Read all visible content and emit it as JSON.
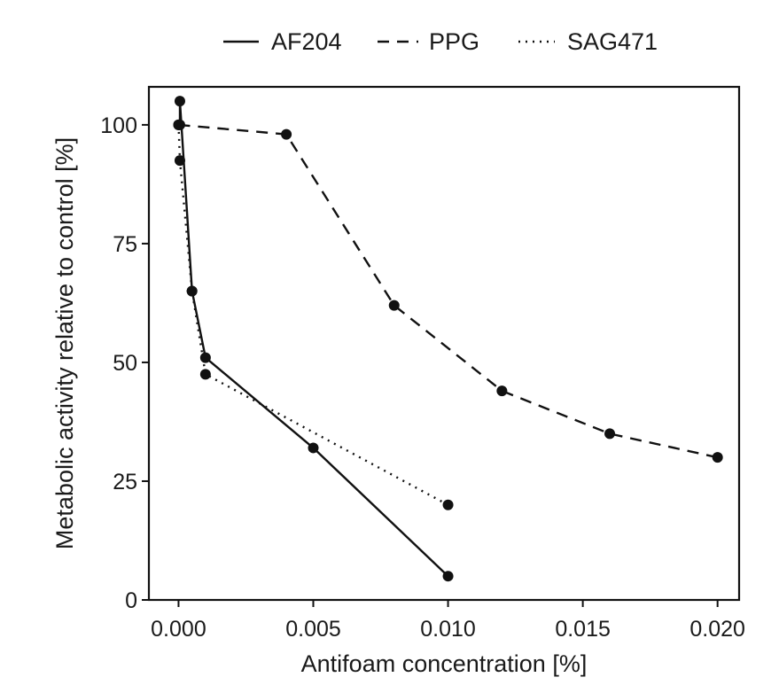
{
  "chart_data": {
    "type": "line",
    "title": "",
    "xlabel": "Antifoam concentration [%]",
    "ylabel": "Metabolic activity relative to control [%]",
    "xlim": [
      -0.0011,
      0.0208
    ],
    "ylim": [
      0,
      108
    ],
    "xticks": [
      "0.000",
      "0.005",
      "0.010",
      "0.015",
      "0.020"
    ],
    "xtick_values": [
      0.0,
      0.005,
      0.01,
      0.015,
      0.02
    ],
    "yticks": [
      "0",
      "25",
      "50",
      "75",
      "100"
    ],
    "ytick_values": [
      0,
      25,
      50,
      75,
      100
    ],
    "grid": false,
    "legend_position": "top",
    "marker_color": "#111111",
    "series": [
      {
        "name": "AF204",
        "style": "solid",
        "x": [
          5e-05,
          5e-05,
          0.0005,
          0.001,
          0.005,
          0.01
        ],
        "y": [
          100,
          105,
          65,
          51,
          32,
          5
        ]
      },
      {
        "name": "PPG",
        "style": "dashed",
        "x": [
          0.0,
          0.004,
          0.008,
          0.012,
          0.016,
          0.02
        ],
        "y": [
          100,
          98,
          62,
          44,
          35,
          30
        ]
      },
      {
        "name": "SAG471",
        "style": "dotted",
        "x": [
          0.0,
          5e-05,
          0.0005,
          0.001,
          0.01
        ],
        "y": [
          100,
          92.5,
          65,
          47.5,
          20
        ]
      }
    ]
  }
}
